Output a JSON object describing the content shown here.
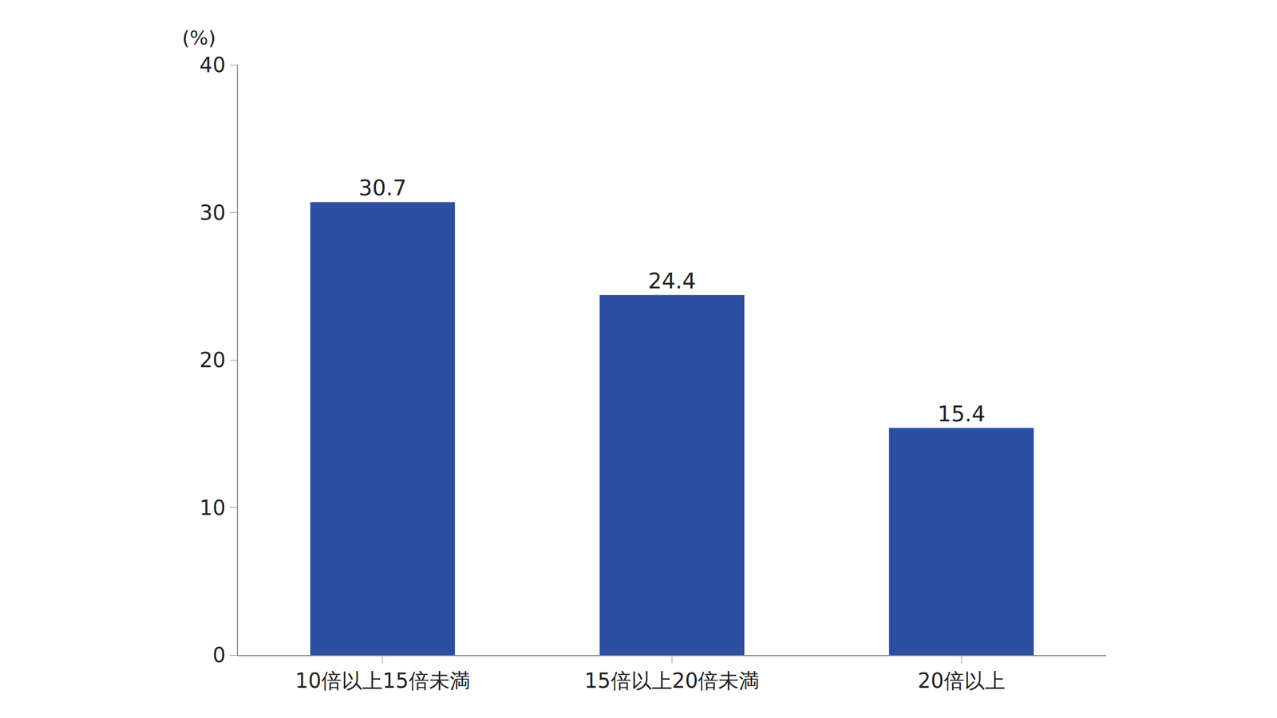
{
  "chart_data": {
    "type": "bar",
    "y_label": "(%)",
    "categories": [
      "10倍以上15倍未満",
      "15倍以上20倍未満",
      "20倍以上"
    ],
    "values": [
      30.7,
      24.4,
      15.4
    ],
    "color": "#2d4fa0",
    "ylim": [
      0,
      40
    ],
    "yticks": [
      0,
      10,
      20,
      30,
      40
    ],
    "grid": false,
    "data_labels": true
  }
}
